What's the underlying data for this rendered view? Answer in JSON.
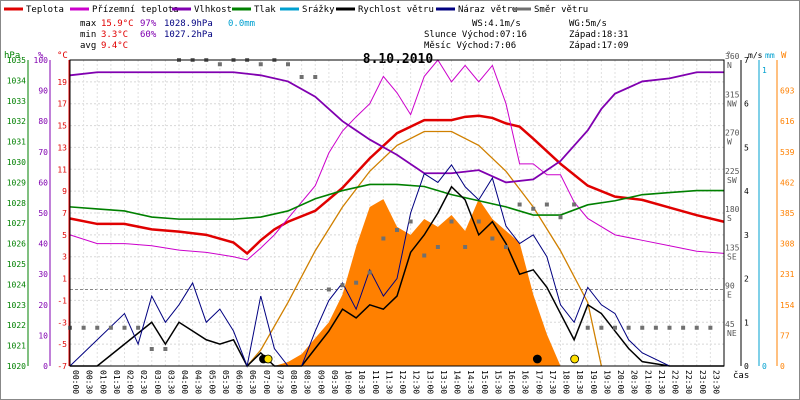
{
  "chart_data": {
    "type": "line",
    "title": "8.10.2010",
    "legend": [
      {
        "label": "Teplota",
        "color": "#e00000"
      },
      {
        "label": "Přízemní teplota",
        "color": "#cc00cc"
      },
      {
        "label": "Vlhkost",
        "color": "#8000b0"
      },
      {
        "label": "Tlak",
        "color": "#008000"
      },
      {
        "label": "Srážky",
        "color": "#00a0d0"
      },
      {
        "label": "Rychlost větru",
        "color": "#000000"
      },
      {
        "label": "Náraz větru",
        "color": "#000080"
      },
      {
        "label": "Směr větru",
        "color": "#707070"
      }
    ],
    "stats": [
      {
        "label": "max",
        "temp": "15.9°C",
        "hum": "97%",
        "press": "1028.9hPa",
        "rain": "0.0mm"
      },
      {
        "label": "min",
        "temp": "3.3°C",
        "hum": "60%",
        "press": "1027.2hPa"
      },
      {
        "label": "avg",
        "temp": "9.4°C"
      }
    ],
    "ws_text": "WS:4.1m/s",
    "wg_text": "WG:5m/s",
    "sun_text": "Slunce Východ:07:16",
    "sunset_text": "Západ:18:31",
    "moon_text": "Měsíc Východ:7:06",
    "moonset_text": "Západ:17:09",
    "axes": {
      "hpa": {
        "unit": "hPa",
        "range": [
          1020,
          1035
        ],
        "ticks": [
          1020,
          1021,
          1022,
          1023,
          1024,
          1025,
          1026,
          1027,
          1028,
          1029,
          1030,
          1031,
          1032,
          1033,
          1034,
          1035
        ]
      },
      "percent": {
        "unit": "%",
        "range": [
          0,
          100
        ],
        "ticks": [
          0,
          10,
          20,
          30,
          40,
          50,
          60,
          70,
          80,
          90,
          100
        ]
      },
      "celsius": {
        "unit": "°C",
        "range": [
          -7,
          21
        ],
        "ticks": [
          -7,
          -5,
          -3,
          -1,
          1,
          3,
          5,
          7,
          9,
          11,
          13,
          15,
          17,
          19
        ]
      },
      "direction": {
        "unit": "°",
        "range": [
          0,
          360
        ],
        "ticks": [
          {
            "v": 360,
            "l": "N"
          },
          {
            "v": 315,
            "l": "NW"
          },
          {
            "v": 270,
            "l": "W"
          },
          {
            "v": 225,
            "l": "SW"
          },
          {
            "v": 180,
            "l": "S"
          },
          {
            "v": 135,
            "l": "SE"
          },
          {
            "v": 90,
            "l": "E"
          },
          {
            "v": 45,
            "l": "NE"
          }
        ]
      },
      "wind": {
        "unit": "m/s",
        "range": [
          0,
          7
        ],
        "ticks": [
          0,
          1,
          2,
          3,
          4,
          5,
          6,
          7
        ]
      },
      "rain": {
        "unit": "mm",
        "range": [
          0,
          1
        ],
        "ticks": [
          0,
          1
        ]
      },
      "solar": {
        "unit": "W",
        "range": [
          0,
          770
        ],
        "ticks": [
          0,
          77,
          154,
          231,
          308,
          385,
          462,
          539,
          616,
          693
        ]
      },
      "time": {
        "unit": "čas",
        "ticks": [
          "00:00",
          "00:30",
          "01:00",
          "01:30",
          "02:00",
          "02:30",
          "03:00",
          "03:30",
          "04:00",
          "04:30",
          "05:00",
          "05:30",
          "06:00",
          "06:30",
          "07:00",
          "07:30",
          "08:00",
          "08:30",
          "09:00",
          "09:30",
          "10:00",
          "10:30",
          "11:00",
          "11:30",
          "12:00",
          "12:30",
          "13:00",
          "13:30",
          "14:00",
          "14:30",
          "15:00",
          "15:30",
          "16:00",
          "16:30",
          "17:00",
          "17:30",
          "18:00",
          "18:30",
          "19:00",
          "19:30",
          "20:00",
          "20:30",
          "21:00",
          "21:30",
          "22:00",
          "22:30",
          "23:00",
          "23:30"
        ]
      }
    },
    "series": [
      {
        "name": "Teplota",
        "axis": "celsius",
        "color": "#e00000",
        "x": [
          0,
          1,
          2,
          3,
          4,
          5,
          6,
          6.5,
          7,
          7.5,
          8,
          9,
          10,
          11,
          12,
          13,
          14,
          14.5,
          15,
          15.5,
          16,
          16.5,
          17,
          18,
          19,
          20,
          21,
          22,
          23,
          24
        ],
        "y": [
          6.5,
          6.0,
          6.0,
          5.5,
          5.3,
          5.0,
          4.3,
          3.3,
          4.5,
          5.5,
          6.2,
          7.2,
          9.3,
          12.0,
          14.3,
          15.5,
          15.5,
          15.8,
          15.9,
          15.7,
          15.2,
          14.9,
          13.8,
          11.5,
          9.5,
          8.5,
          8.2,
          7.5,
          6.8,
          6.2
        ]
      },
      {
        "name": "Přízemní teplota",
        "axis": "celsius",
        "color": "#cc00cc",
        "x": [
          0,
          1,
          2,
          3,
          4,
          5,
          6,
          6.5,
          7,
          7.5,
          8,
          9,
          9.5,
          10,
          10.5,
          11,
          11.5,
          12,
          12.5,
          13,
          13.5,
          14,
          14.5,
          15,
          15.5,
          16,
          16.5,
          17,
          17.5,
          18,
          18.5,
          19,
          20,
          21,
          22,
          23,
          24
        ],
        "y": [
          5.0,
          4.2,
          4.2,
          4.0,
          3.6,
          3.4,
          3.0,
          2.7,
          3.8,
          5.0,
          6.5,
          9.5,
          12.5,
          14.5,
          15.8,
          17.0,
          19.5,
          18.0,
          16.0,
          19.5,
          21.0,
          19.0,
          20.5,
          19.0,
          20.5,
          17.0,
          11.5,
          11.5,
          10.5,
          10.5,
          8.0,
          6.5,
          5.0,
          4.5,
          4.0,
          3.5,
          3.3
        ]
      },
      {
        "name": "Vlhkost",
        "axis": "percent",
        "color": "#8000b0",
        "x": [
          0,
          1,
          2,
          3,
          4,
          5,
          6,
          7,
          8,
          9,
          10,
          11,
          12,
          13,
          14,
          15,
          16,
          17,
          18,
          19,
          19.5,
          20,
          21,
          22,
          23,
          24
        ],
        "y": [
          95,
          96,
          96,
          96,
          96,
          96,
          96,
          95,
          93,
          88,
          80,
          74,
          69,
          63,
          63,
          64,
          60,
          61,
          67,
          77,
          84,
          89,
          93,
          94,
          96,
          96
        ]
      },
      {
        "name": "Tlak",
        "axis": "hpa",
        "color": "#008000",
        "x": [
          0,
          1,
          2,
          3,
          4,
          5,
          6,
          7,
          8,
          9,
          10,
          11,
          12,
          13,
          14,
          15,
          16,
          17,
          18,
          19,
          20,
          21,
          22,
          23,
          24
        ],
        "y": [
          1027.8,
          1027.7,
          1027.6,
          1027.3,
          1027.2,
          1027.2,
          1027.2,
          1027.3,
          1027.6,
          1028.2,
          1028.6,
          1028.9,
          1028.9,
          1028.8,
          1028.4,
          1028.1,
          1027.8,
          1027.4,
          1027.4,
          1027.9,
          1028.1,
          1028.4,
          1028.5,
          1028.6,
          1028.6
        ]
      },
      {
        "name": "Rychlost větru",
        "axis": "wind",
        "color": "#000000",
        "x": [
          0,
          1,
          2,
          3,
          3.5,
          4,
          4.5,
          5,
          5.5,
          6,
          6.5,
          7,
          7.5,
          8,
          8.5,
          9,
          9.5,
          10,
          10.5,
          11,
          11.5,
          12,
          12.5,
          13,
          13.5,
          14,
          14.5,
          15,
          15.5,
          16,
          16.5,
          17,
          17.5,
          18,
          18.5,
          19,
          19.5,
          20,
          20.5,
          21,
          22,
          23,
          24
        ],
        "y": [
          0,
          0,
          0.5,
          1.0,
          0.5,
          1.0,
          0.8,
          0.6,
          0.5,
          0.6,
          0.0,
          0.3,
          0.0,
          0.0,
          0.0,
          0.4,
          0.8,
          1.3,
          1.1,
          1.4,
          1.3,
          1.6,
          2.6,
          3.0,
          3.5,
          4.1,
          3.8,
          3.0,
          3.3,
          2.8,
          2.1,
          2.2,
          1.8,
          1.2,
          0.6,
          1.4,
          1.2,
          0.8,
          0.4,
          0.1,
          0,
          0,
          0
        ]
      },
      {
        "name": "Náraz větru",
        "axis": "wind",
        "color": "#000080",
        "x": [
          0,
          1,
          2,
          2.5,
          3,
          3.5,
          4,
          4.5,
          5,
          5.5,
          6,
          6.5,
          7,
          7.5,
          8,
          8.5,
          9,
          9.5,
          10,
          10.5,
          11,
          11.5,
          12,
          12.5,
          13,
          13.5,
          14,
          14.5,
          15,
          15.5,
          16,
          16.5,
          17,
          17.5,
          18,
          18.5,
          19,
          19.5,
          20,
          20.5,
          21,
          22,
          23,
          24
        ],
        "y": [
          0,
          0.6,
          1.2,
          0.5,
          1.6,
          1.0,
          1.4,
          1.9,
          1.0,
          1.3,
          0.8,
          0.0,
          1.6,
          0.4,
          0.0,
          0.0,
          0.8,
          1.5,
          1.9,
          1.3,
          2.2,
          1.6,
          2.0,
          3.5,
          4.4,
          4.2,
          4.6,
          4.1,
          3.8,
          4.3,
          3.2,
          2.8,
          3.0,
          2.5,
          1.4,
          1.0,
          1.8,
          1.4,
          1.2,
          0.6,
          0.3,
          0,
          0,
          0
        ]
      },
      {
        "name": "Směr větru",
        "axis": "direction",
        "color": "#707070",
        "x": [
          0,
          0.5,
          1,
          1.5,
          2,
          2.5,
          3,
          3.5,
          4,
          4.5,
          5,
          5.5,
          6,
          6.5,
          7,
          7.5,
          8,
          8.5,
          9,
          9.5,
          10,
          10.5,
          11,
          11.5,
          12,
          12.5,
          13,
          13.5,
          14,
          14.5,
          15,
          15.5,
          16,
          16.5,
          17,
          17.5,
          18,
          18.5,
          19,
          19.5,
          20,
          20.5,
          21,
          21.5,
          22,
          22.5,
          23,
          23.5
        ],
        "y": [
          45,
          45,
          45,
          45,
          45,
          45,
          20,
          20,
          360,
          360,
          360,
          355,
          360,
          360,
          355,
          360,
          355,
          340,
          340,
          90,
          95,
          98,
          110,
          150,
          160,
          170,
          130,
          140,
          170,
          140,
          170,
          150,
          140,
          190,
          185,
          190,
          175,
          190,
          45,
          45,
          45,
          45,
          45,
          45,
          45,
          45,
          45,
          45
        ]
      }
    ],
    "solar_radiation": {
      "name": "solar",
      "axis": "solar",
      "color": "#ff8000",
      "x": [
        7.5,
        8,
        8.5,
        9,
        9.5,
        10,
        10.5,
        11,
        11.5,
        12,
        12.5,
        13,
        13.5,
        14,
        14.5,
        15,
        15.5,
        16,
        16.5,
        17,
        17.5,
        18
      ],
      "y": [
        0,
        10,
        30,
        70,
        110,
        180,
        300,
        400,
        420,
        350,
        330,
        370,
        350,
        380,
        340,
        420,
        370,
        340,
        310,
        180,
        80,
        0
      ]
    },
    "clear_sky_radiation": {
      "axis": "solar",
      "color": "#d08000",
      "x": [
        6.5,
        7,
        8,
        9,
        10,
        11,
        12,
        13,
        14,
        15,
        16,
        17,
        18,
        19,
        19.5
      ],
      "y": [
        0,
        40,
        160,
        290,
        400,
        490,
        555,
        590,
        590,
        555,
        490,
        400,
        290,
        160,
        0
      ]
    }
  }
}
